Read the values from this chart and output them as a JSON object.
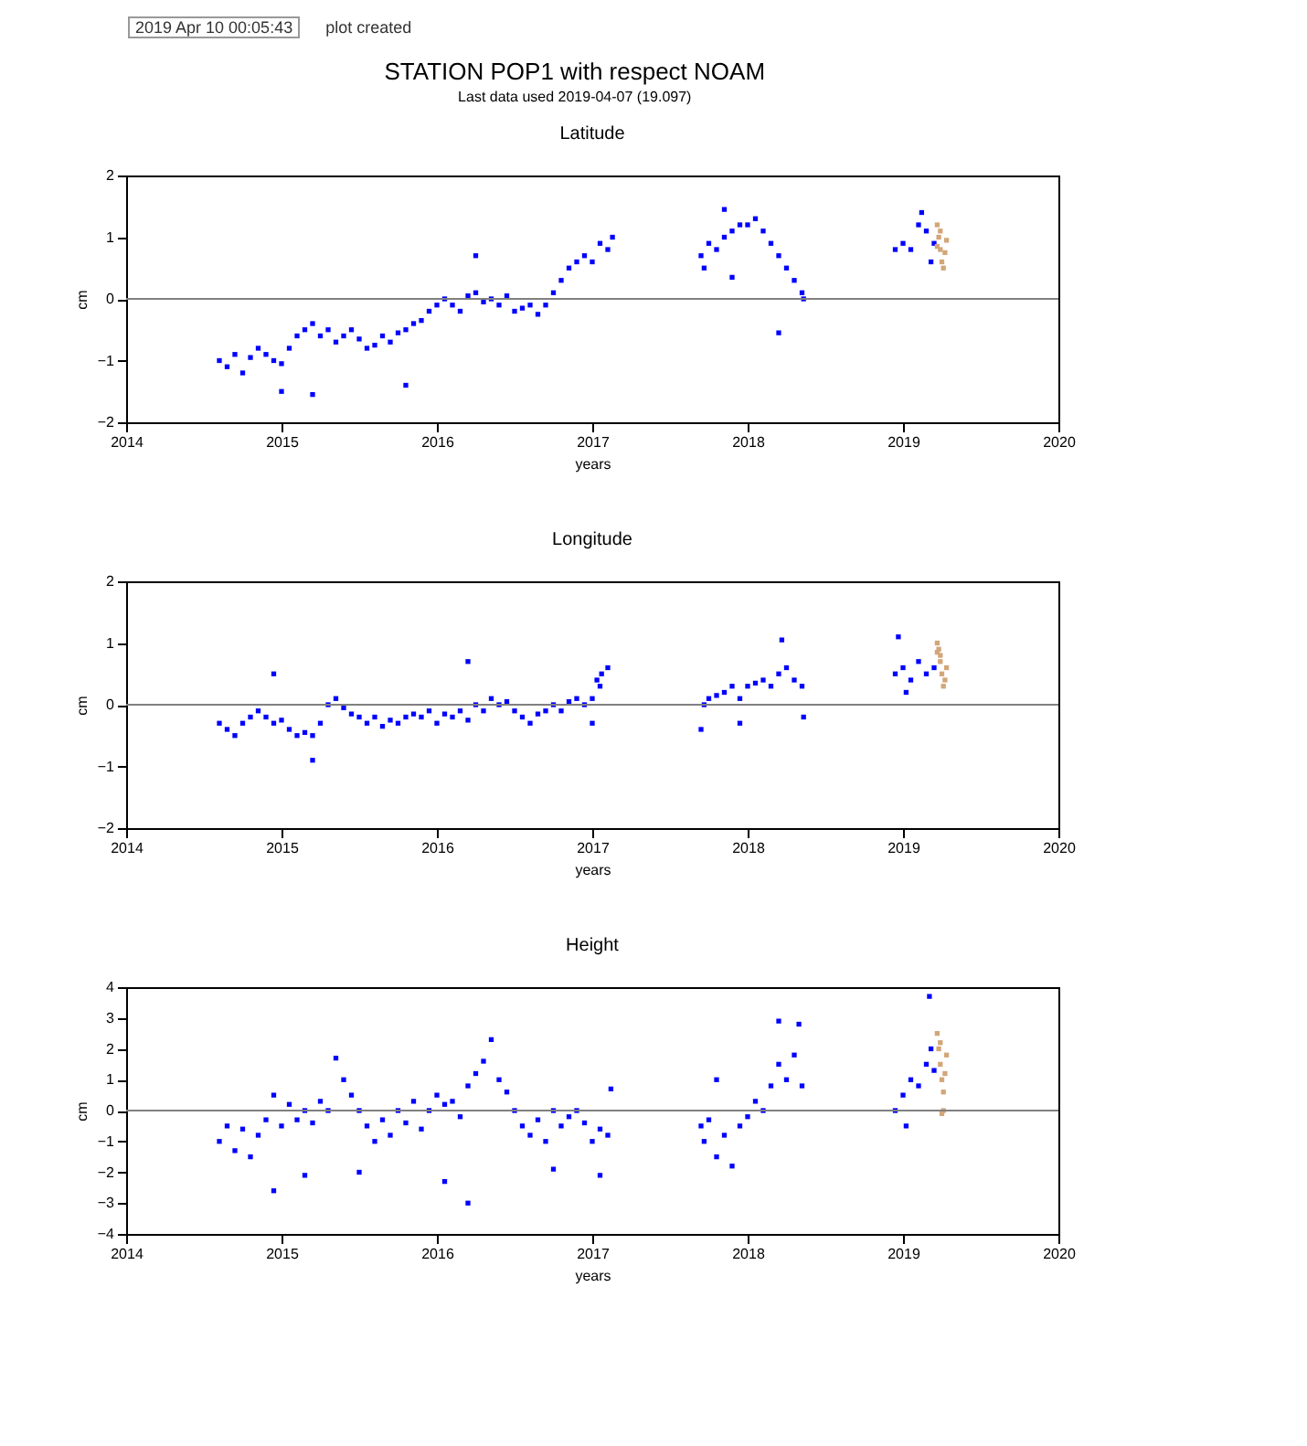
{
  "chart_data": [
    {
      "type": "other",
      "title": "STATION POP1 with respect NOAM",
      "subtitle": "Last data used 2019-04-07 (19.097)",
      "annotations": [
        "2019 Apr 10 00:05:43",
        "plot created"
      ]
    },
    {
      "type": "scatter",
      "title": "Latitude",
      "xlabel": "years",
      "ylabel": "cm",
      "xlim": [
        2014,
        2020
      ],
      "xticks": [
        2014,
        2015,
        2016,
        2017,
        2018,
        2019,
        2020
      ],
      "ylim": [
        -2,
        2
      ],
      "yticks": [
        -2,
        -1,
        0,
        1,
        2
      ],
      "grid": false,
      "legend": false,
      "marker": "square",
      "ref_lines": [
        {
          "axis": "y",
          "value": 0,
          "color": "#808080"
        }
      ],
      "series": [
        {
          "color": "#0000ff",
          "x": [
            2014.6,
            2014.65,
            2014.7,
            2014.75,
            2014.8,
            2014.85,
            2014.9,
            2014.95,
            2015.0,
            2015.05,
            2015.1,
            2015.15,
            2015.2,
            2015.25,
            2015.3,
            2015.35,
            2015.4,
            2015.45,
            2015.5,
            2015.55,
            2015.6,
            2015.65,
            2015.7,
            2015.75,
            2015.8,
            2015.85,
            2015.9,
            2015.95,
            2016.0,
            2016.05,
            2016.1,
            2016.15,
            2016.2,
            2016.25,
            2016.3,
            2016.35,
            2016.4,
            2016.45,
            2016.5,
            2016.55,
            2016.6,
            2016.65,
            2016.7,
            2016.75,
            2016.8,
            2016.85,
            2016.9,
            2016.95,
            2017.0,
            2017.05,
            2017.1,
            2017.13,
            2015.2,
            2015.0,
            2015.8,
            2016.25,
            2017.7,
            2017.72,
            2017.75,
            2017.8,
            2017.85,
            2017.9,
            2017.95,
            2018.0,
            2018.05,
            2018.1,
            2018.15,
            2018.2,
            2018.25,
            2018.3,
            2018.35,
            2018.36,
            2018.2,
            2017.9,
            2017.85,
            2018.95,
            2019.0,
            2019.05,
            2019.1,
            2019.15,
            2019.18,
            2019.2,
            2019.12
          ],
          "values": [
            -1.0,
            -1.1,
            -0.9,
            -1.2,
            -0.95,
            -0.8,
            -0.9,
            -1.0,
            -1.05,
            -0.8,
            -0.6,
            -0.5,
            -0.4,
            -0.6,
            -0.5,
            -0.7,
            -0.6,
            -0.5,
            -0.65,
            -0.8,
            -0.75,
            -0.6,
            -0.7,
            -0.55,
            -0.5,
            -0.4,
            -0.35,
            -0.2,
            -0.1,
            0.0,
            -0.1,
            -0.2,
            0.05,
            0.1,
            -0.05,
            0.0,
            -0.1,
            0.05,
            -0.2,
            -0.15,
            -0.1,
            -0.25,
            -0.1,
            0.1,
            0.3,
            0.5,
            0.6,
            0.7,
            0.6,
            0.9,
            0.8,
            1.0,
            -1.55,
            -1.5,
            -1.4,
            0.7,
            0.7,
            0.5,
            0.9,
            0.8,
            1.0,
            1.1,
            1.2,
            1.2,
            1.3,
            1.1,
            0.9,
            0.7,
            0.5,
            0.3,
            0.1,
            0.0,
            -0.55,
            0.35,
            1.45,
            0.8,
            0.9,
            0.8,
            1.2,
            1.1,
            0.6,
            0.9,
            1.4
          ]
        },
        {
          "color": "#d2a679",
          "x": [
            2019.22,
            2019.23,
            2019.24,
            2019.25,
            2019.26,
            2019.27,
            2019.28,
            2019.24,
            2019.22
          ],
          "values": [
            1.2,
            1.0,
            0.8,
            0.6,
            0.5,
            0.75,
            0.95,
            1.1,
            0.85
          ]
        }
      ]
    },
    {
      "type": "scatter",
      "title": "Longitude",
      "xlabel": "years",
      "ylabel": "cm",
      "xlim": [
        2014,
        2020
      ],
      "xticks": [
        2014,
        2015,
        2016,
        2017,
        2018,
        2019,
        2020
      ],
      "ylim": [
        -2,
        2
      ],
      "yticks": [
        -2,
        -1,
        0,
        1,
        2
      ],
      "grid": false,
      "legend": false,
      "marker": "square",
      "ref_lines": [
        {
          "axis": "y",
          "value": 0,
          "color": "#808080"
        }
      ],
      "series": [
        {
          "color": "#0000ff",
          "x": [
            2014.6,
            2014.65,
            2014.7,
            2014.75,
            2014.8,
            2014.85,
            2014.9,
            2014.95,
            2015.0,
            2015.05,
            2015.1,
            2015.15,
            2015.2,
            2015.25,
            2015.3,
            2015.35,
            2015.4,
            2015.45,
            2015.5,
            2015.55,
            2015.6,
            2015.65,
            2015.7,
            2015.75,
            2015.8,
            2015.85,
            2015.9,
            2015.95,
            2016.0,
            2016.05,
            2016.1,
            2016.15,
            2016.2,
            2016.25,
            2016.3,
            2016.35,
            2016.4,
            2016.45,
            2016.5,
            2016.55,
            2016.6,
            2016.65,
            2016.7,
            2016.75,
            2016.8,
            2016.85,
            2016.9,
            2016.95,
            2017.0,
            2017.03,
            2017.06,
            2017.1,
            2017.05,
            2014.95,
            2015.2,
            2016.2,
            2017.0,
            2017.7,
            2017.72,
            2017.75,
            2017.8,
            2017.85,
            2017.9,
            2017.95,
            2018.0,
            2018.05,
            2018.1,
            2018.15,
            2018.2,
            2018.25,
            2018.3,
            2018.35,
            2018.22,
            2017.95,
            2018.36,
            2018.95,
            2019.0,
            2019.05,
            2019.1,
            2019.15,
            2019.2,
            2018.97,
            2019.02
          ],
          "values": [
            -0.3,
            -0.4,
            -0.5,
            -0.3,
            -0.2,
            -0.1,
            -0.2,
            -0.3,
            -0.25,
            -0.4,
            -0.5,
            -0.45,
            -0.5,
            -0.3,
            0.0,
            0.1,
            -0.05,
            -0.15,
            -0.2,
            -0.3,
            -0.2,
            -0.35,
            -0.25,
            -0.3,
            -0.2,
            -0.15,
            -0.2,
            -0.1,
            -0.3,
            -0.15,
            -0.2,
            -0.1,
            -0.25,
            0.0,
            -0.1,
            0.1,
            0.0,
            0.05,
            -0.1,
            -0.2,
            -0.3,
            -0.15,
            -0.1,
            0.0,
            -0.1,
            0.05,
            0.1,
            0.0,
            0.1,
            0.4,
            0.5,
            0.6,
            0.3,
            0.5,
            -0.9,
            0.7,
            -0.3,
            -0.4,
            0.0,
            0.1,
            0.15,
            0.2,
            0.3,
            0.1,
            0.3,
            0.35,
            0.4,
            0.3,
            0.5,
            0.6,
            0.4,
            0.3,
            1.05,
            -0.3,
            -0.2,
            0.5,
            0.6,
            0.4,
            0.7,
            0.5,
            0.6,
            1.1,
            0.2
          ]
        },
        {
          "color": "#d2a679",
          "x": [
            2019.22,
            2019.23,
            2019.24,
            2019.25,
            2019.26,
            2019.27,
            2019.28,
            2019.24,
            2019.22
          ],
          "values": [
            1.0,
            0.9,
            0.7,
            0.5,
            0.3,
            0.4,
            0.6,
            0.8,
            0.85
          ]
        }
      ]
    },
    {
      "type": "scatter",
      "title": "Height",
      "xlabel": "years",
      "ylabel": "cm",
      "xlim": [
        2014,
        2020
      ],
      "xticks": [
        2014,
        2015,
        2016,
        2017,
        2018,
        2019,
        2020
      ],
      "ylim": [
        -4,
        4
      ],
      "yticks": [
        -4,
        -3,
        -2,
        -1,
        0,
        1,
        2,
        3,
        4
      ],
      "grid": false,
      "legend": false,
      "marker": "square",
      "ref_lines": [
        {
          "axis": "y",
          "value": 0,
          "color": "#808080"
        }
      ],
      "series": [
        {
          "color": "#0000ff",
          "x": [
            2014.6,
            2014.65,
            2014.7,
            2014.75,
            2014.8,
            2014.85,
            2014.9,
            2014.95,
            2015.0,
            2015.05,
            2015.1,
            2015.15,
            2015.2,
            2015.25,
            2015.3,
            2015.35,
            2015.4,
            2015.45,
            2015.5,
            2015.55,
            2015.6,
            2015.65,
            2015.7,
            2015.75,
            2015.8,
            2015.85,
            2015.9,
            2015.95,
            2016.0,
            2016.05,
            2016.1,
            2016.15,
            2016.2,
            2016.25,
            2016.3,
            2016.35,
            2016.4,
            2016.45,
            2016.5,
            2016.55,
            2016.6,
            2016.65,
            2016.7,
            2016.75,
            2016.8,
            2016.85,
            2016.9,
            2016.95,
            2017.0,
            2017.05,
            2017.1,
            2017.12,
            2014.95,
            2015.15,
            2015.5,
            2016.05,
            2016.2,
            2016.75,
            2017.05,
            2017.7,
            2017.72,
            2017.75,
            2017.8,
            2017.85,
            2017.9,
            2017.95,
            2018.0,
            2018.05,
            2018.1,
            2018.15,
            2018.2,
            2018.25,
            2018.3,
            2018.35,
            2018.2,
            2018.33,
            2017.8,
            2018.95,
            2019.0,
            2019.02,
            2019.05,
            2019.1,
            2019.15,
            2019.18,
            2019.2,
            2019.17
          ],
          "values": [
            -1.0,
            -0.5,
            -1.3,
            -0.6,
            -1.5,
            -0.8,
            -0.3,
            0.5,
            -0.5,
            0.2,
            -0.3,
            0.0,
            -0.4,
            0.3,
            0.0,
            1.7,
            1.0,
            0.5,
            0.0,
            -0.5,
            -1.0,
            -0.3,
            -0.8,
            0.0,
            -0.4,
            0.3,
            -0.6,
            0.0,
            0.5,
            0.2,
            0.3,
            -0.2,
            0.8,
            1.2,
            1.6,
            2.3,
            1.0,
            0.6,
            0.0,
            -0.5,
            -0.8,
            -0.3,
            -1.0,
            0.0,
            -0.5,
            -0.2,
            0.0,
            -0.4,
            -1.0,
            -0.6,
            -0.8,
            0.7,
            -2.6,
            -2.1,
            -2.0,
            -2.3,
            -3.0,
            -1.9,
            -2.1,
            -0.5,
            -1.0,
            -0.3,
            -1.5,
            -0.8,
            -1.8,
            -0.5,
            -0.2,
            0.3,
            0.0,
            0.8,
            1.5,
            1.0,
            1.8,
            0.8,
            2.9,
            2.8,
            1.0,
            0.0,
            0.5,
            -0.5,
            1.0,
            0.8,
            1.5,
            2.0,
            1.3,
            3.7
          ]
        },
        {
          "color": "#d2a679",
          "x": [
            2019.22,
            2019.23,
            2019.24,
            2019.25,
            2019.26,
            2019.27,
            2019.28,
            2019.24,
            2019.26,
            2019.25
          ],
          "values": [
            2.5,
            2.0,
            1.5,
            1.0,
            0.6,
            1.2,
            1.8,
            2.2,
            0.0,
            -0.1
          ]
        }
      ]
    }
  ]
}
